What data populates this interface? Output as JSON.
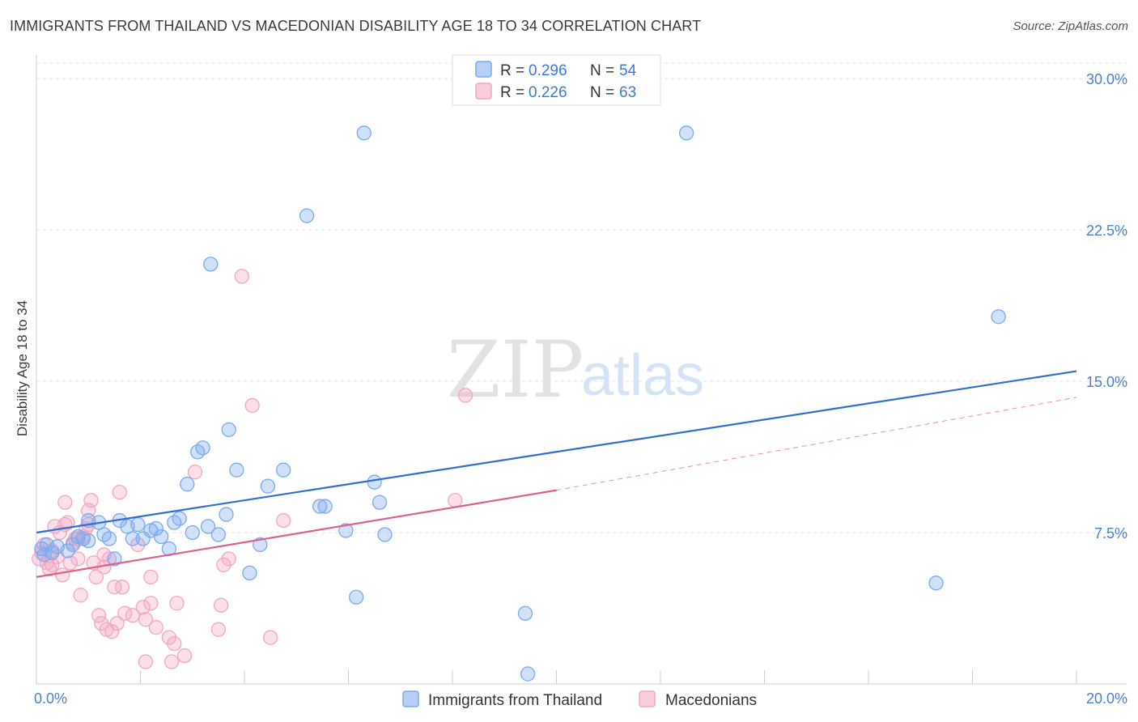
{
  "title": "IMMIGRANTS FROM THAILAND VS MACEDONIAN DISABILITY AGE 18 TO 34 CORRELATION CHART",
  "source": "Source: ZipAtlas.com",
  "watermark": {
    "zip": "ZIP",
    "atlas": "atlas"
  },
  "legend_top": [
    {
      "r_label": "R = ",
      "r_value": "0.296",
      "n_label": "N = ",
      "n_value": "54",
      "color": "#7aaaf0"
    },
    {
      "r_label": "R = ",
      "r_value": "0.226",
      "n_label": "N = ",
      "n_value": "63",
      "color": "#f4a6c0"
    }
  ],
  "legend_bottom": [
    {
      "label": "Immigrants from Thailand",
      "color": "#7aaaf0"
    },
    {
      "label": "Macedonians",
      "color": "#f4a6c0"
    }
  ],
  "chart_data": {
    "type": "scatter",
    "title": "IMMIGRANTS FROM THAILAND VS MACEDONIAN DISABILITY AGE 18 TO 34 CORRELATION CHART",
    "xlabel": "",
    "ylabel": "Disability Age 18 to 34",
    "xlim": [
      0,
      20
    ],
    "ylim": [
      0,
      30
    ],
    "x_tick_labels": [
      "0.0%",
      "20.0%"
    ],
    "y_ticks": [
      7.5,
      15.0,
      22.5,
      30.0
    ],
    "y_tick_labels": [
      "7.5%",
      "15.0%",
      "22.5%",
      "30.0%"
    ],
    "grid": true,
    "legend_position": "top-center",
    "series": [
      {
        "name": "Immigrants from Thailand",
        "color": "#7aaaf0",
        "line_color": "#2f6fd0",
        "trend": {
          "x": [
            0,
            20
          ],
          "y": [
            7.5,
            15.5
          ]
        },
        "points": [
          [
            0.1,
            6.7
          ],
          [
            0.2,
            6.9
          ],
          [
            0.3,
            6.5
          ],
          [
            0.4,
            6.8
          ],
          [
            0.6,
            6.6
          ],
          [
            0.7,
            6.9
          ],
          [
            0.8,
            7.3
          ],
          [
            0.9,
            7.2
          ],
          [
            1.0,
            8.1
          ],
          [
            1.2,
            8.0
          ],
          [
            1.3,
            7.4
          ],
          [
            1.4,
            7.2
          ],
          [
            1.5,
            6.2
          ],
          [
            1.6,
            8.1
          ],
          [
            1.75,
            7.8
          ],
          [
            1.85,
            7.2
          ],
          [
            1.95,
            7.9
          ],
          [
            2.05,
            7.2
          ],
          [
            2.2,
            7.6
          ],
          [
            2.3,
            7.7
          ],
          [
            2.4,
            7.3
          ],
          [
            2.55,
            6.7
          ],
          [
            2.65,
            8.0
          ],
          [
            2.75,
            8.2
          ],
          [
            2.9,
            9.9
          ],
          [
            3.0,
            7.5
          ],
          [
            3.1,
            11.5
          ],
          [
            3.2,
            11.7
          ],
          [
            3.3,
            7.8
          ],
          [
            3.35,
            20.8
          ],
          [
            3.5,
            7.4
          ],
          [
            3.65,
            8.4
          ],
          [
            3.7,
            12.6
          ],
          [
            3.85,
            10.6
          ],
          [
            4.1,
            5.5
          ],
          [
            4.3,
            6.9
          ],
          [
            4.45,
            9.8
          ],
          [
            4.75,
            10.6
          ],
          [
            5.2,
            23.2
          ],
          [
            5.45,
            8.8
          ],
          [
            5.55,
            8.8
          ],
          [
            5.95,
            7.6
          ],
          [
            6.15,
            4.3
          ],
          [
            6.3,
            27.3
          ],
          [
            6.5,
            10.0
          ],
          [
            6.6,
            9.0
          ],
          [
            6.7,
            7.4
          ],
          [
            9.4,
            3.5
          ],
          [
            9.45,
            0.5
          ],
          [
            12.5,
            27.3
          ],
          [
            17.3,
            5.0
          ],
          [
            18.5,
            18.2
          ],
          [
            0.15,
            6.4
          ],
          [
            1.0,
            7.1
          ]
        ]
      },
      {
        "name": "Macedonians",
        "color": "#f4a6c0",
        "line_color": "#e0608a",
        "trend": {
          "x": [
            0,
            10
          ],
          "y": [
            5.3,
            9.6
          ]
        },
        "trend_extension": {
          "x": [
            10,
            20
          ],
          "y": [
            9.6,
            14.2
          ]
        },
        "points": [
          [
            0.05,
            6.2
          ],
          [
            0.1,
            6.5
          ],
          [
            0.15,
            6.9
          ],
          [
            0.2,
            6.0
          ],
          [
            0.25,
            5.7
          ],
          [
            0.3,
            5.9
          ],
          [
            0.35,
            7.8
          ],
          [
            0.4,
            6.3
          ],
          [
            0.45,
            7.5
          ],
          [
            0.5,
            5.4
          ],
          [
            0.55,
            7.9
          ],
          [
            0.55,
            9.0
          ],
          [
            0.6,
            8.0
          ],
          [
            0.65,
            6.0
          ],
          [
            0.7,
            7.0
          ],
          [
            0.75,
            7.2
          ],
          [
            0.8,
            6.2
          ],
          [
            0.8,
            7.2
          ],
          [
            0.85,
            4.4
          ],
          [
            0.9,
            7.3
          ],
          [
            0.95,
            7.7
          ],
          [
            1.0,
            7.9
          ],
          [
            1.0,
            8.6
          ],
          [
            1.05,
            9.1
          ],
          [
            1.1,
            6.0
          ],
          [
            1.15,
            5.3
          ],
          [
            1.2,
            3.4
          ],
          [
            1.25,
            3.0
          ],
          [
            1.3,
            6.4
          ],
          [
            1.3,
            5.8
          ],
          [
            1.35,
            2.7
          ],
          [
            1.45,
            2.6
          ],
          [
            1.5,
            4.8
          ],
          [
            1.55,
            3.0
          ],
          [
            1.6,
            9.5
          ],
          [
            1.65,
            4.8
          ],
          [
            1.7,
            3.5
          ],
          [
            1.85,
            3.4
          ],
          [
            1.95,
            6.9
          ],
          [
            2.05,
            3.8
          ],
          [
            2.1,
            3.2
          ],
          [
            2.1,
            1.1
          ],
          [
            2.2,
            5.3
          ],
          [
            2.2,
            4.0
          ],
          [
            2.55,
            2.3
          ],
          [
            2.6,
            1.1
          ],
          [
            2.65,
            2.0
          ],
          [
            2.7,
            4.0
          ],
          [
            2.85,
            1.4
          ],
          [
            3.05,
            10.5
          ],
          [
            3.5,
            2.7
          ],
          [
            3.55,
            3.9
          ],
          [
            3.6,
            5.9
          ],
          [
            3.7,
            6.2
          ],
          [
            3.95,
            20.2
          ],
          [
            4.15,
            13.8
          ],
          [
            4.5,
            2.3
          ],
          [
            4.75,
            8.1
          ],
          [
            8.05,
            9.1
          ],
          [
            8.25,
            14.3
          ],
          [
            1.4,
            6.2
          ],
          [
            0.3,
            6.6
          ],
          [
            2.3,
            2.8
          ]
        ]
      }
    ]
  }
}
